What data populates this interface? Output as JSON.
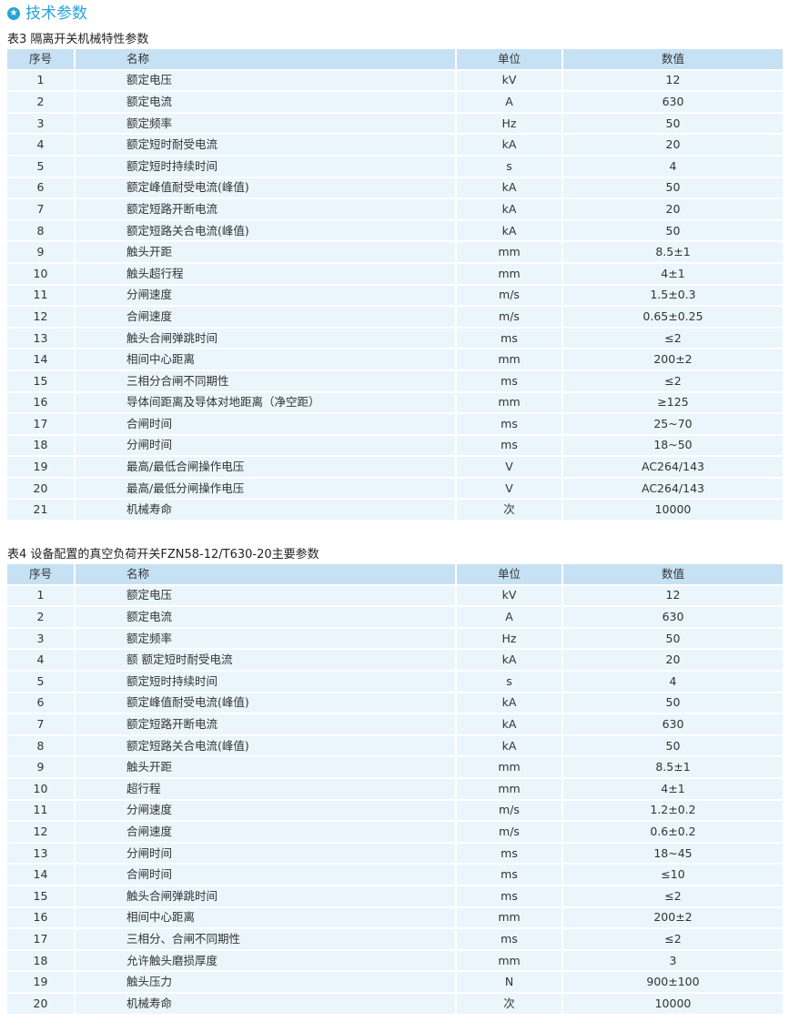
{
  "section_title": "技术参数",
  "section_icon": "star-circle-icon",
  "colors": {
    "accent": "#2aa3d6",
    "header_bg": "#c6e1f4",
    "row_bg": "#eaf5fc"
  },
  "tables": [
    {
      "caption": "表3  隔离开关机械特性参数",
      "headers": [
        "序号",
        "名称",
        "单位",
        "数值"
      ],
      "rows": [
        [
          "1",
          "额定电压",
          "kV",
          "12"
        ],
        [
          "2",
          "额定电流",
          "A",
          "630"
        ],
        [
          "3",
          "额定频率",
          "Hz",
          "50"
        ],
        [
          "4",
          "额定短时耐受电流",
          "kA",
          "20"
        ],
        [
          "5",
          "额定短时持续时间",
          "s",
          "4"
        ],
        [
          "6",
          "额定峰值耐受电流(峰值)",
          "kA",
          "50"
        ],
        [
          "7",
          "额定短路开断电流",
          "kA",
          "20"
        ],
        [
          "8",
          "额定短路关合电流(峰值)",
          "kA",
          "50"
        ],
        [
          "9",
          "触头开距",
          "mm",
          "8.5±1"
        ],
        [
          "10",
          "触头超行程",
          "mm",
          "4±1"
        ],
        [
          "11",
          "分闸速度",
          "m/s",
          "1.5±0.3"
        ],
        [
          "12",
          "合闸速度",
          "m/s",
          "0.65±0.25"
        ],
        [
          "13",
          "触头合闸弹跳时间",
          "ms",
          "≤2"
        ],
        [
          "14",
          "相间中心距离",
          "mm",
          "200±2"
        ],
        [
          "15",
          "三相分合闸不同期性",
          "ms",
          "≤2"
        ],
        [
          "16",
          "导体间距离及导体对地距离（净空距）",
          "mm",
          "≥125"
        ],
        [
          "17",
          "合闸时间",
          "ms",
          "25~70"
        ],
        [
          "18",
          "分闸时间",
          "ms",
          "18~50"
        ],
        [
          "19",
          "最高/最低合闸操作电压",
          "V",
          "AC264/143"
        ],
        [
          "20",
          "最高/最低分闸操作电压",
          "V",
          "AC264/143"
        ],
        [
          "21",
          "机械寿命",
          "次",
          "10000"
        ]
      ]
    },
    {
      "caption": "表4 设备配置的真空负荷开关FZN58-12/T630-20主要参数",
      "headers": [
        "序号",
        "名称",
        "单位",
        "数值"
      ],
      "rows": [
        [
          "1",
          "额定电压",
          "kV",
          "12"
        ],
        [
          "2",
          "额定电流",
          "A",
          "630"
        ],
        [
          "3",
          "额定频率",
          "Hz",
          "50"
        ],
        [
          "4",
          "额  额定短时耐受电流",
          "kA",
          "20"
        ],
        [
          "5",
          "额定短时持续时间",
          "s",
          "4"
        ],
        [
          "6",
          "额定峰值耐受电流(峰值)",
          "kA",
          "50"
        ],
        [
          "7",
          "额定短路开断电流",
          "kA",
          "630"
        ],
        [
          "8",
          "额定短路关合电流(峰值)",
          "kA",
          "50"
        ],
        [
          "9",
          "触头开距",
          "mm",
          "8.5±1"
        ],
        [
          "10",
          "超行程",
          "mm",
          "4±1"
        ],
        [
          "11",
          "分闸速度",
          "m/s",
          "1.2±0.2"
        ],
        [
          "12",
          "合闸速度",
          "m/s",
          "0.6±0.2"
        ],
        [
          "13",
          "分闸时间",
          "ms",
          "18~45"
        ],
        [
          "14",
          "合闸时间",
          "ms",
          "≤10"
        ],
        [
          "15",
          "触头合闸弹跳时间",
          "ms",
          "≤2"
        ],
        [
          "16",
          "相间中心距离",
          "mm",
          "200±2"
        ],
        [
          "17",
          "三相分、合闸不同期性",
          "ms",
          "≤2"
        ],
        [
          "18",
          "允许触头磨损厚度",
          "mm",
          "3"
        ],
        [
          "19",
          "触头压力",
          "N",
          "900±100"
        ],
        [
          "20",
          "机械寿命",
          "次",
          "10000"
        ]
      ]
    }
  ]
}
